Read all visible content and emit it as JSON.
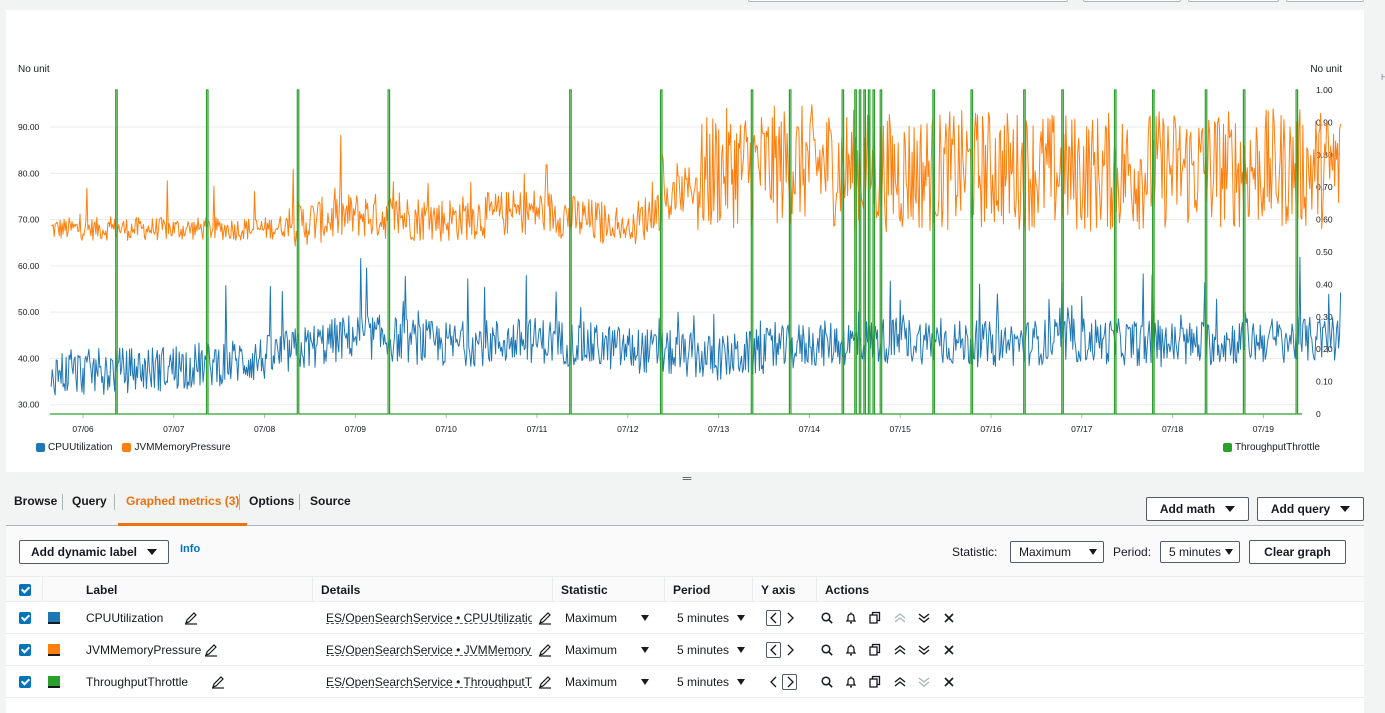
{
  "chart": {
    "left_unit": "No unit",
    "right_unit": "No unit",
    "left_ticks": [
      "90.00",
      "80.00",
      "70.00",
      "60.00",
      "50.00",
      "40.00",
      "30.00"
    ],
    "right_ticks": [
      "1.00",
      "0.90",
      "0.80",
      "0.70",
      "0.60",
      "0.50",
      "0.40",
      "0.30",
      "0.20",
      "0.10",
      "0"
    ],
    "x_ticks": [
      "07/06",
      "07/07",
      "07/08",
      "07/09",
      "07/10",
      "07/11",
      "07/12",
      "07/13",
      "07/14",
      "07/15",
      "07/16",
      "07/17",
      "07/18",
      "07/19"
    ],
    "legend_left": [
      {
        "label": "CPUUtilization",
        "color": "#1f77b4"
      },
      {
        "label": "JVMMemoryPressure",
        "color": "#ff7f0e"
      }
    ],
    "legend_right": [
      {
        "label": "ThroughputThrottle",
        "color": "#2ca02c"
      }
    ]
  },
  "chart_data": {
    "type": "line",
    "x": [
      "07/06",
      "07/07",
      "07/08",
      "07/09",
      "07/10",
      "07/11",
      "07/12",
      "07/13",
      "07/14",
      "07/15",
      "07/16",
      "07/17",
      "07/18",
      "07/19"
    ],
    "series": [
      {
        "name": "CPUUtilization",
        "axis": "left",
        "color": "#1f77b4",
        "values": [
          37,
          38,
          40,
          45,
          43,
          44,
          42,
          40,
          43,
          44,
          43,
          44,
          43,
          44
        ]
      },
      {
        "name": "JVMMemoryPressure",
        "axis": "left",
        "color": "#ff7f0e",
        "values": [
          68,
          68,
          68,
          71,
          70,
          72,
          68,
          81,
          82,
          80,
          81,
          80,
          81,
          81
        ]
      },
      {
        "name": "ThroughputThrottle",
        "axis": "right",
        "color": "#2ca02c",
        "values": [
          0,
          0,
          0,
          0,
          0,
          0,
          0,
          0,
          0,
          0,
          0,
          0,
          0,
          0
        ]
      }
    ],
    "throttle_spikes": [
      "07/06",
      "07/07",
      "07/08",
      "07/09",
      "07/11",
      "07/12",
      "07/13",
      "07/14",
      "07/15",
      "07/16",
      "07/17",
      "07/18",
      "07/19"
    ],
    "ylim_left": [
      28,
      98
    ],
    "ylim_right": [
      0,
      1
    ],
    "grid": true,
    "legend": "bottom"
  },
  "tabs": [
    {
      "label": "Browse"
    },
    {
      "label": "Query"
    },
    {
      "label": "Graphed metrics (3)"
    },
    {
      "label": "Options"
    },
    {
      "label": "Source"
    }
  ],
  "buttons": {
    "add_math": "Add math",
    "add_query": "Add query",
    "add_dynamic_label": "Add dynamic label",
    "info": "Info",
    "clear_graph": "Clear graph"
  },
  "toolbar": {
    "statistic_label": "Statistic:",
    "statistic_value": "Maximum",
    "period_label": "Period:",
    "period_value": "5 minutes"
  },
  "table": {
    "headers": {
      "label": "Label",
      "details": "Details",
      "statistic": "Statistic",
      "period": "Period",
      "yaxis": "Y axis",
      "actions": "Actions"
    },
    "rows": [
      {
        "label": "CPUUtilization",
        "color": "#1f77b4",
        "details": "ES/OpenSearchService • CPUUtilization •",
        "statistic": "Maximum",
        "period": "5 minutes",
        "yaxis": "left"
      },
      {
        "label": "JVMMemoryPressure",
        "color": "#ff7f0e",
        "details": "ES/OpenSearchService • JVMMemoryPres",
        "statistic": "Maximum",
        "period": "5 minutes",
        "yaxis": "left"
      },
      {
        "label": "ThroughputThrottle",
        "color": "#2ca02c",
        "details": "ES/OpenSearchService • ThroughputThrc",
        "statistic": "Maximum",
        "period": "5 minutes",
        "yaxis": "right"
      }
    ]
  }
}
